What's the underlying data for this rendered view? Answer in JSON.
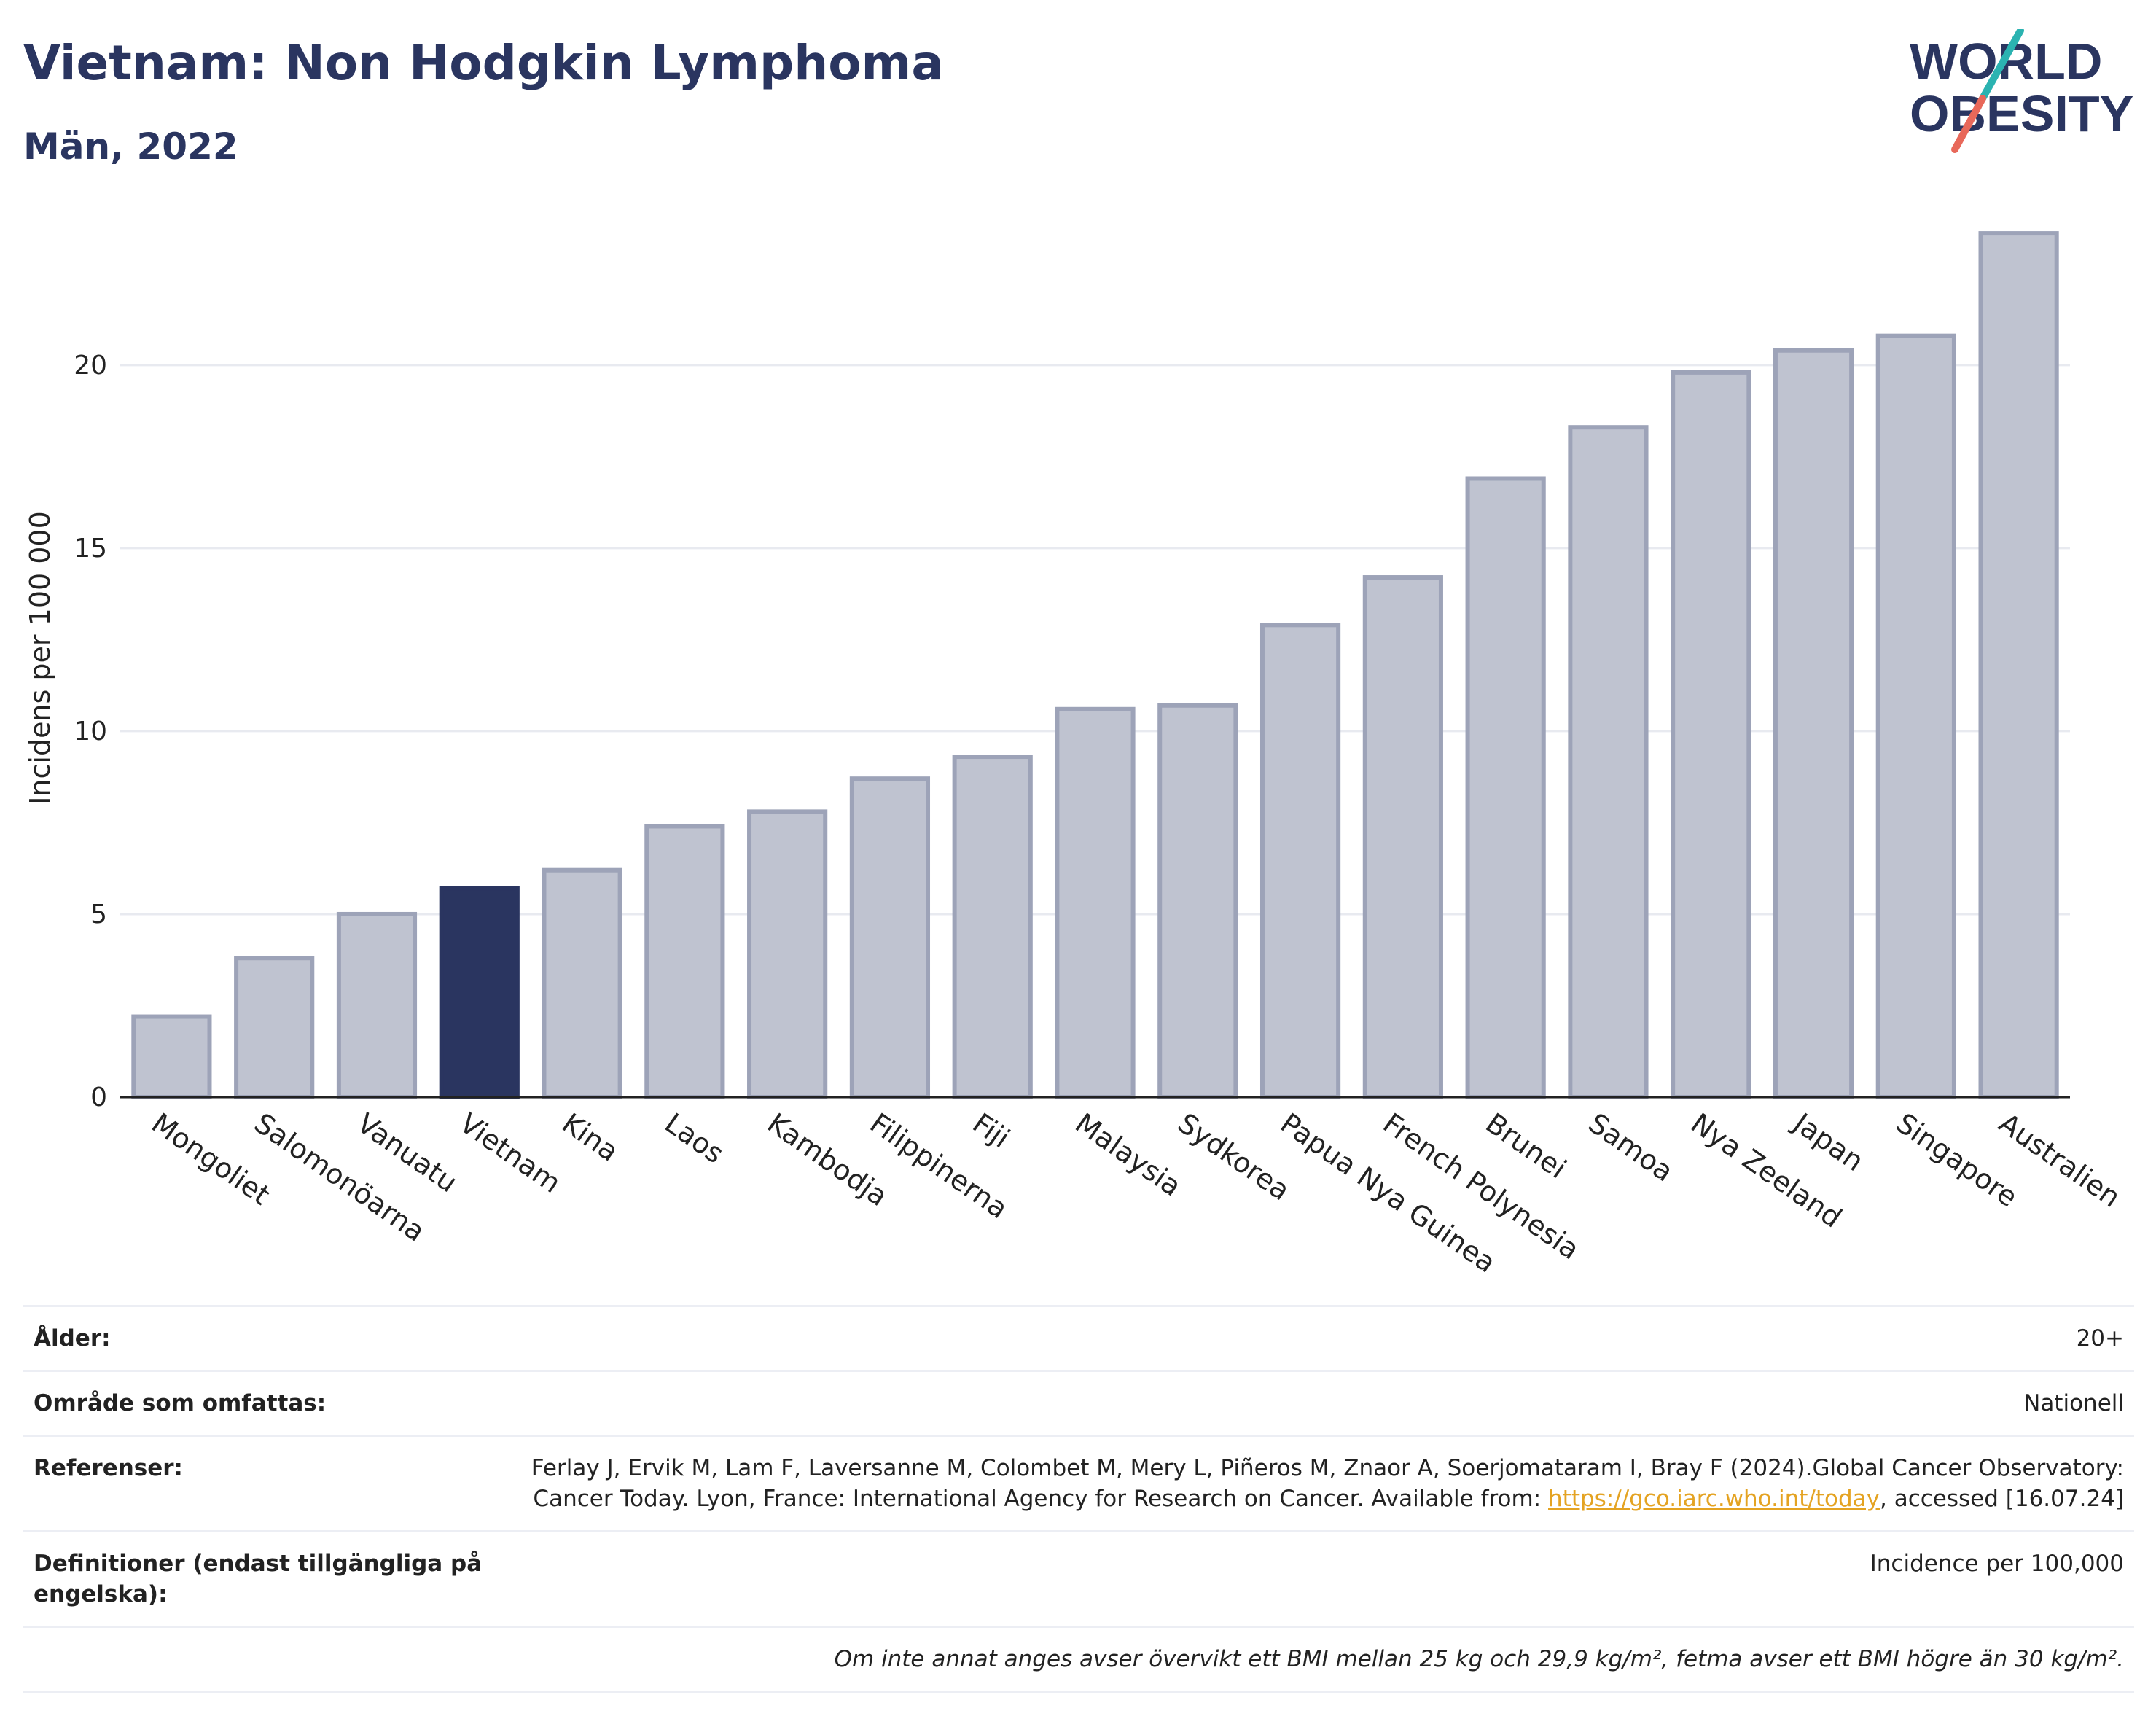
{
  "header": {
    "title": "Vietnam: Non Hodgkin Lymphoma",
    "subtitle": "Män, 2022"
  },
  "logo": {
    "line1": "WORLD",
    "line2": "OBESITY",
    "colors": {
      "text": "#2a3560",
      "slash_teal": "#2bb3b1",
      "slash_red": "#e8685a"
    }
  },
  "colors": {
    "bar_default": "#bfc3d0",
    "bar_border": "#9da3b8",
    "bar_highlight": "#2a3560",
    "grid": "#e8eaf0",
    "axis": "#222222"
  },
  "chart_data": {
    "type": "bar",
    "title": "Vietnam: Non Hodgkin Lymphoma",
    "subtitle": "Män, 2022",
    "xlabel": "",
    "ylabel": "Incidens per 100 000",
    "ylim": [
      0,
      24
    ],
    "yticks": [
      0,
      5,
      10,
      15,
      20
    ],
    "grid": true,
    "highlight": "Vietnam",
    "categories": [
      "Mongoliet",
      "Salomonöarna",
      "Vanuatu",
      "Vietnam",
      "Kina",
      "Laos",
      "Kambodja",
      "Filippinerna",
      "Fiji",
      "Malaysia",
      "Sydkorea",
      "Papua Nya Guinea",
      "French Polynesia",
      "Brunei",
      "Samoa",
      "Nya Zeeland",
      "Japan",
      "Singapore",
      "Australien"
    ],
    "values": [
      2.2,
      3.8,
      5.0,
      5.7,
      6.2,
      7.4,
      7.8,
      8.7,
      9.3,
      10.6,
      10.7,
      12.9,
      14.2,
      16.9,
      18.3,
      19.8,
      20.4,
      20.8,
      23.6
    ]
  },
  "meta": {
    "rows": [
      {
        "key": "Ålder:",
        "value": "20+"
      },
      {
        "key": "Område som omfattas:",
        "value": "Nationell"
      },
      {
        "key": "Referenser:",
        "value_pre": "Ferlay J, Ervik M, Lam F, Laversanne M, Colombet M, Mery L, Piñeros M, Znaor A, Soerjomataram I, Bray F (2024).Global Cancer Observatory: Cancer Today. Lyon, France: International Agency for Research on Cancer. Available from: ",
        "link": "https://gco.iarc.who.int/today",
        "value_post": ", accessed [16.07.24]"
      },
      {
        "key": "Definitioner (endast tillgängliga på engelska):",
        "value": "Incidence per 100,000"
      }
    ],
    "note": "Om inte annat anges avser övervikt ett BMI mellan 25 kg och 29,9 kg/m², fetma avser ett BMI högre än 30 kg/m²."
  }
}
